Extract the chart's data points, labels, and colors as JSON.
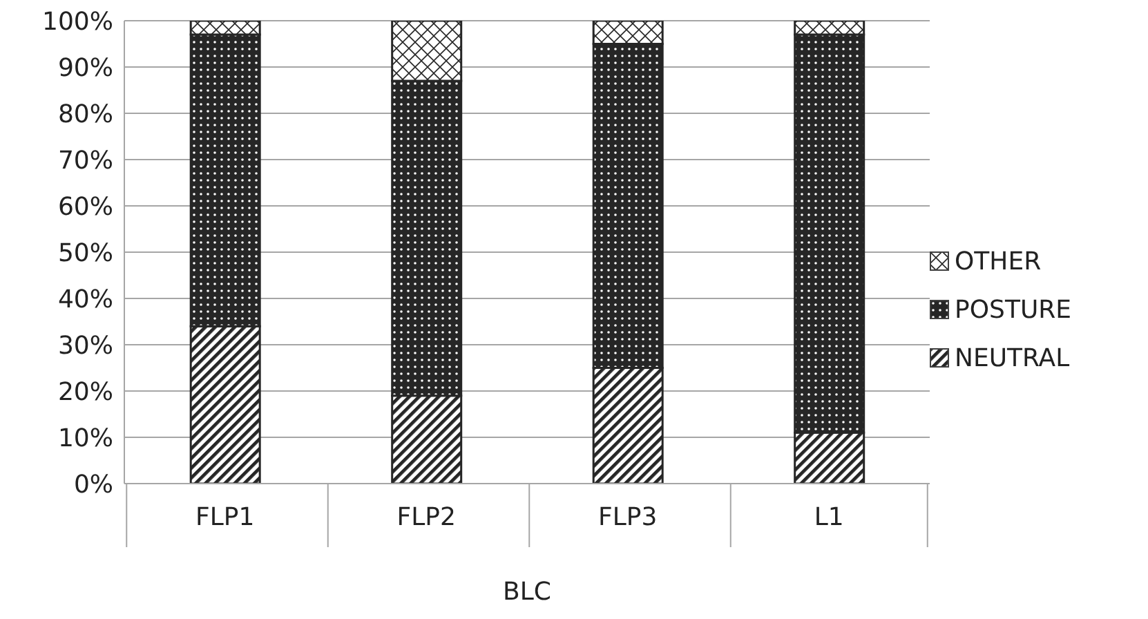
{
  "chart_data": {
    "type": "bar",
    "stacked": true,
    "xlabel": "BLC",
    "categories": [
      "FLP1",
      "FLP2",
      "FLP3",
      "L1"
    ],
    "series": [
      {
        "name": "NEUTRAL",
        "color": "#262626",
        "values": [
          34,
          19,
          25,
          11
        ]
      },
      {
        "name": "POSTURE",
        "color": "#262626",
        "values": [
          63,
          68,
          70,
          86
        ]
      },
      {
        "name": "OTHER",
        "color": "#262626",
        "values": [
          3,
          13,
          5,
          3
        ]
      }
    ],
    "ylim": [
      0,
      100
    ],
    "yticks": [
      {
        "value": 0,
        "label": "0%"
      },
      {
        "value": 10,
        "label": "10%"
      },
      {
        "value": 20,
        "label": "20%"
      },
      {
        "value": 30,
        "label": "30%"
      },
      {
        "value": 40,
        "label": "40%"
      },
      {
        "value": 50,
        "label": "50%"
      },
      {
        "value": 60,
        "label": "60%"
      },
      {
        "value": 70,
        "label": "70%"
      },
      {
        "value": 80,
        "label": "80%"
      },
      {
        "value": 90,
        "label": "90%"
      },
      {
        "value": 100,
        "label": "100%"
      }
    ],
    "grid": "y",
    "legend": "right"
  }
}
